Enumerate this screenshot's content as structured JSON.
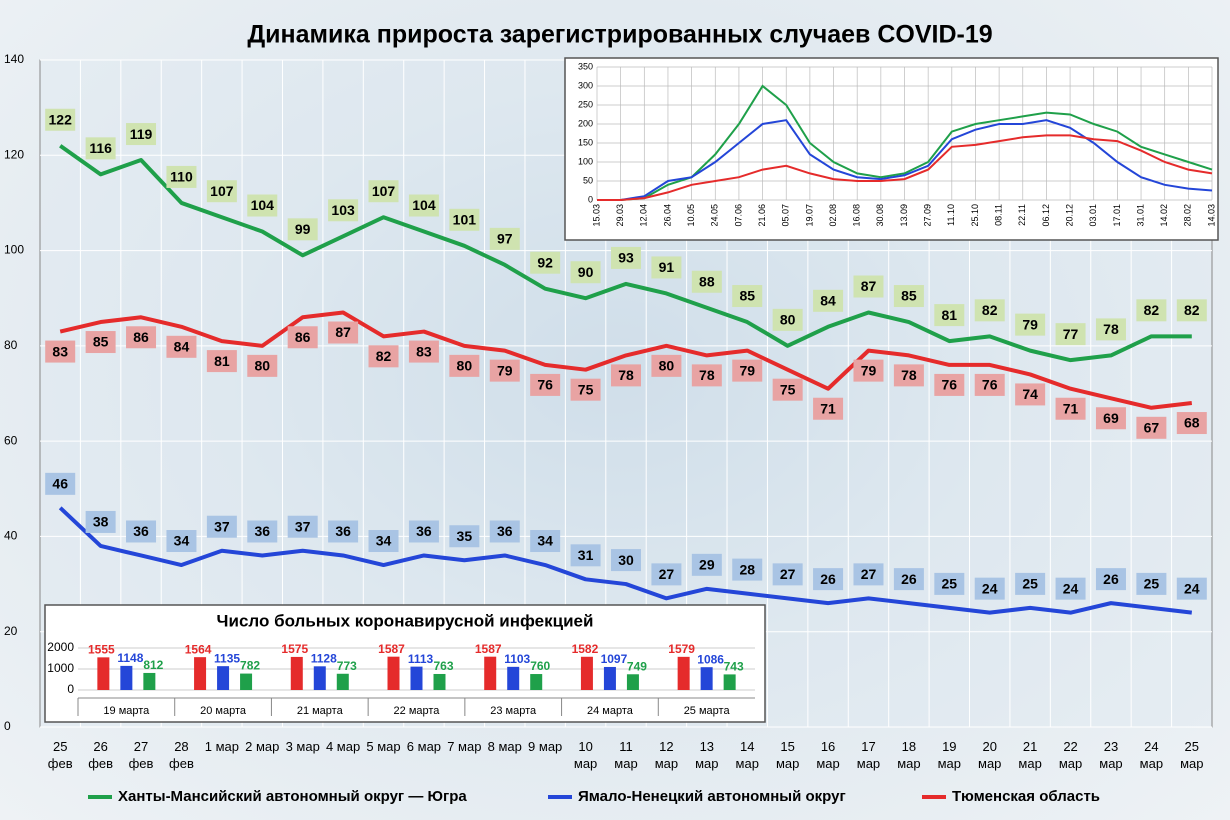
{
  "chart_data": [
    {
      "type": "line",
      "title": "Динамика прироста зарегистрированных случаев COVID-19",
      "categories": [
        "25 фев",
        "26 фев",
        "27 фев",
        "28 фев",
        "1 мар",
        "2 мар",
        "3 мар",
        "4 мар",
        "5 мар",
        "6 мар",
        "7 мар",
        "8 мар",
        "9 мар",
        "10 мар",
        "11 мар",
        "12 мар",
        "13 мар",
        "14 мар",
        "15 мар",
        "16 мар",
        "17 мар",
        "18 мар",
        "19 мар",
        "20 мар",
        "21 мар",
        "22 мар",
        "23 мар",
        "24 мар",
        "25 мар"
      ],
      "series": [
        {
          "name": "Ханты-Мансийский автономный округ — Югра",
          "color": "#1fa04a",
          "values": [
            122,
            116,
            119,
            110,
            107,
            104,
            99,
            103,
            107,
            104,
            101,
            97,
            92,
            90,
            93,
            91,
            88,
            85,
            80,
            84,
            87,
            85,
            81,
            82,
            79,
            77,
            78,
            82,
            82
          ]
        },
        {
          "name": "Ямало-Ненецкий автономный округ",
          "color": "#2446d8",
          "values": [
            46,
            38,
            36,
            34,
            37,
            36,
            37,
            36,
            34,
            36,
            35,
            36,
            34,
            31,
            30,
            27,
            29,
            28,
            27,
            26,
            27,
            26,
            25,
            24,
            25,
            24,
            26,
            25,
            24
          ]
        },
        {
          "name": "Тюменская область",
          "color": "#e52b2b",
          "values": [
            83,
            85,
            86,
            84,
            81,
            80,
            86,
            87,
            82,
            83,
            80,
            79,
            76,
            75,
            78,
            80,
            78,
            79,
            75,
            71,
            79,
            78,
            76,
            76,
            74,
            71,
            69,
            67,
            68
          ]
        }
      ],
      "ylim": [
        0,
        140
      ],
      "yticks": [
        0,
        20,
        40,
        60,
        80,
        100,
        120,
        140
      ],
      "grid": true
    },
    {
      "type": "line",
      "categories": [
        "15.03",
        "29.03",
        "12.04",
        "26.04",
        "10.05",
        "24.05",
        "07.06",
        "21.06",
        "05.07",
        "19.07",
        "02.08",
        "16.08",
        "30.08",
        "13.09",
        "27.09",
        "11.10",
        "25.10",
        "08.11",
        "22.11",
        "06.12",
        "20.12",
        "03.01",
        "17.01",
        "31.01",
        "14.02",
        "28.02",
        "14.03"
      ],
      "series": [
        {
          "color": "#1fa04a",
          "values": [
            0,
            0,
            5,
            40,
            60,
            120,
            200,
            300,
            250,
            150,
            100,
            70,
            60,
            70,
            100,
            180,
            200,
            210,
            220,
            230,
            225,
            200,
            180,
            140,
            120,
            100,
            80
          ]
        },
        {
          "color": "#2446d8",
          "values": [
            0,
            0,
            10,
            50,
            60,
            100,
            150,
            200,
            210,
            120,
            80,
            60,
            55,
            65,
            90,
            160,
            185,
            200,
            200,
            210,
            190,
            150,
            100,
            60,
            40,
            30,
            25
          ]
        },
        {
          "color": "#e52b2b",
          "values": [
            0,
            0,
            5,
            20,
            40,
            50,
            60,
            80,
            90,
            70,
            55,
            50,
            50,
            55,
            80,
            140,
            145,
            155,
            165,
            170,
            170,
            160,
            155,
            130,
            100,
            80,
            70
          ]
        }
      ],
      "ylim": [
        0,
        350
      ],
      "yticks": [
        0,
        50,
        100,
        150,
        200,
        250,
        300,
        350
      ],
      "grid": true
    },
    {
      "type": "bar",
      "title": "Число больных коронавирусной инфекцией",
      "categories": [
        "19 марта",
        "20 марта",
        "21 марта",
        "22 марта",
        "23 марта",
        "24 марта",
        "25 марта"
      ],
      "series": [
        {
          "color": "#e52b2b",
          "values": [
            1555,
            1564,
            1575,
            1587,
            1587,
            1582,
            1579
          ]
        },
        {
          "color": "#2446d8",
          "values": [
            1148,
            1135,
            1128,
            1113,
            1103,
            1097,
            1086
          ]
        },
        {
          "color": "#1fa04a",
          "values": [
            812,
            782,
            773,
            763,
            760,
            749,
            743
          ]
        }
      ],
      "ylim": [
        0,
        2000
      ],
      "yticks": [
        0,
        1000,
        2000
      ]
    }
  ]
}
